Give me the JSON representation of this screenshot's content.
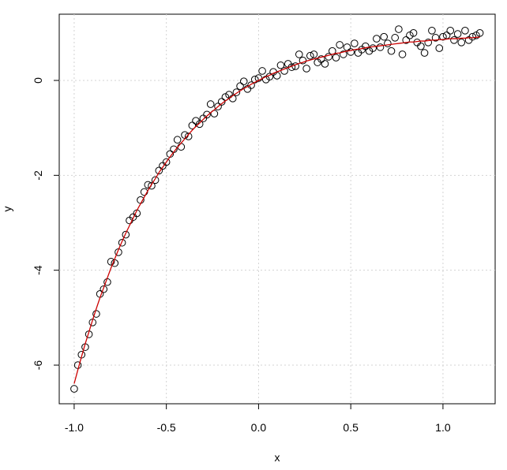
{
  "chart_data": {
    "type": "scatter",
    "x_label": "x",
    "y_label": "y",
    "xlim": [
      -1.081,
      1.283
    ],
    "ylim": [
      -6.814,
      1.396
    ],
    "xticks": [
      {
        "value": -1,
        "label": "-1.0"
      },
      -0.5,
      {
        "value": 0,
        "label": "0.0"
      },
      0.5,
      {
        "value": 1,
        "label": "1.0"
      }
    ],
    "yticks": [
      -6,
      -4,
      -2,
      0
    ],
    "grid": true,
    "x": [
      -1,
      -0.98,
      -0.96,
      -0.94,
      -0.92,
      -0.9,
      -0.88,
      -0.86,
      -0.84,
      -0.82,
      -0.8,
      -0.78,
      -0.76,
      -0.74,
      -0.72,
      -0.7,
      -0.68,
      -0.66,
      -0.64,
      -0.62,
      -0.6,
      -0.58,
      -0.56,
      -0.54,
      -0.52,
      -0.5,
      -0.48,
      -0.46,
      -0.44,
      -0.42,
      -0.4,
      -0.38,
      -0.36,
      -0.34,
      -0.32,
      -0.3,
      -0.28,
      -0.26,
      -0.24,
      -0.22,
      -0.2,
      -0.18,
      -0.16,
      -0.14,
      -0.12,
      -0.1,
      -0.08,
      -0.06,
      -0.04,
      -0.02,
      0,
      0.02,
      0.04,
      0.06,
      0.08,
      0.1,
      0.12,
      0.14,
      0.16,
      0.18,
      0.2,
      0.22,
      0.24,
      0.26,
      0.28,
      0.3,
      0.32,
      0.34,
      0.36,
      0.38,
      0.4,
      0.42,
      0.44,
      0.46,
      0.48,
      0.5,
      0.52,
      0.54,
      0.56,
      0.58,
      0.6,
      0.62,
      0.64,
      0.66,
      0.68,
      0.7,
      0.72,
      0.74,
      0.76,
      0.78,
      0.8,
      0.82,
      0.84,
      0.86,
      0.88,
      0.9,
      0.92,
      0.94,
      0.96,
      0.98,
      1,
      1.02,
      1.04,
      1.06,
      1.08,
      1.1,
      1.12,
      1.14,
      1.16,
      1.18,
      1.2
    ],
    "series": [
      {
        "kind": "points",
        "color": "#000000",
        "values": [
          -6.5,
          -6.0,
          -5.78,
          -5.62,
          -5.35,
          -5.1,
          -4.92,
          -4.5,
          -4.4,
          -4.25,
          -3.82,
          -3.85,
          -3.62,
          -3.42,
          -3.25,
          -2.95,
          -2.88,
          -2.8,
          -2.52,
          -2.35,
          -2.2,
          -2.22,
          -2.1,
          -1.9,
          -1.8,
          -1.72,
          -1.55,
          -1.45,
          -1.25,
          -1.4,
          -1.15,
          -1.18,
          -0.95,
          -0.85,
          -0.92,
          -0.8,
          -0.72,
          -0.5,
          -0.7,
          -0.55,
          -0.45,
          -0.35,
          -0.3,
          -0.38,
          -0.25,
          -0.12,
          -0.02,
          -0.18,
          -0.1,
          0.02,
          0.05,
          0.2,
          0.02,
          0.08,
          0.18,
          0.1,
          0.32,
          0.2,
          0.35,
          0.28,
          0.3,
          0.55,
          0.42,
          0.25,
          0.52,
          0.55,
          0.38,
          0.45,
          0.35,
          0.5,
          0.62,
          0.48,
          0.75,
          0.55,
          0.7,
          0.6,
          0.78,
          0.58,
          0.65,
          0.72,
          0.62,
          0.68,
          0.88,
          0.7,
          0.92,
          0.78,
          0.62,
          0.9,
          1.08,
          0.55,
          0.85,
          0.95,
          1.0,
          0.8,
          0.72,
          0.58,
          0.8,
          1.05,
          0.9,
          0.68,
          0.92,
          0.95,
          1.05,
          0.85,
          0.98,
          0.8,
          1.05,
          0.85,
          0.92,
          0.95,
          1.0
        ]
      },
      {
        "kind": "line",
        "color": "#cc0000",
        "values": [
          -6.39,
          -6.1,
          -5.82,
          -5.55,
          -5.3,
          -5.05,
          -4.81,
          -4.58,
          -4.37,
          -4.16,
          -3.95,
          -3.76,
          -3.57,
          -3.39,
          -3.22,
          -3.06,
          -2.9,
          -2.74,
          -2.6,
          -2.46,
          -2.32,
          -2.19,
          -2.07,
          -1.94,
          -1.83,
          -1.72,
          -1.61,
          -1.51,
          -1.41,
          -1.32,
          -1.23,
          -1.14,
          -1.05,
          -0.97,
          -0.9,
          -0.82,
          -0.75,
          -0.68,
          -0.62,
          -0.55,
          -0.49,
          -0.43,
          -0.38,
          -0.32,
          -0.27,
          -0.22,
          -0.17,
          -0.13,
          -0.08,
          -0.04,
          0,
          0.04,
          0.08,
          0.11,
          0.15,
          0.18,
          0.21,
          0.24,
          0.27,
          0.3,
          0.33,
          0.36,
          0.38,
          0.41,
          0.43,
          0.45,
          0.47,
          0.49,
          0.51,
          0.53,
          0.55,
          0.57,
          0.58,
          0.6,
          0.62,
          0.63,
          0.65,
          0.66,
          0.67,
          0.69,
          0.7,
          0.71,
          0.72,
          0.73,
          0.74,
          0.75,
          0.76,
          0.77,
          0.78,
          0.79,
          0.8,
          0.81,
          0.81,
          0.82,
          0.83,
          0.83,
          0.84,
          0.85,
          0.85,
          0.86,
          0.86,
          0.87,
          0.88,
          0.88,
          0.88,
          0.89,
          0.89,
          0.9,
          0.9,
          0.91,
          0.91
        ]
      }
    ]
  }
}
